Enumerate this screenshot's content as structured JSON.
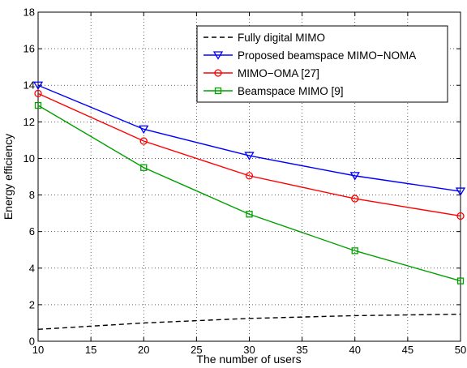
{
  "chart_data": {
    "type": "line",
    "title": "",
    "xlabel": "The number of users",
    "ylabel": "Energy efficiency",
    "xlim": [
      10,
      50
    ],
    "ylim": [
      0,
      18
    ],
    "xticks": [
      10,
      15,
      20,
      25,
      30,
      35,
      40,
      45,
      50
    ],
    "yticks": [
      0,
      2,
      4,
      6,
      8,
      10,
      12,
      14,
      16,
      18
    ],
    "grid": true,
    "legend_position": "top-right",
    "x": [
      10,
      20,
      30,
      40,
      50
    ],
    "series": [
      {
        "name": "Fully digital MIMO",
        "values": [
          0.65,
          1.0,
          1.25,
          1.4,
          1.48
        ],
        "color": "#000000",
        "dash": "dashed",
        "marker": "none"
      },
      {
        "name": "Proposed beamspace MIMO−NOMA",
        "values": [
          14.0,
          11.6,
          10.15,
          9.05,
          8.2
        ],
        "color": "#0000ff",
        "dash": "solid",
        "marker": "triangle-down"
      },
      {
        "name": "MIMO−OMA [27]",
        "values": [
          13.55,
          10.95,
          9.05,
          7.8,
          6.85
        ],
        "color": "#ff0000",
        "dash": "solid",
        "marker": "circle"
      },
      {
        "name": "Beamspace MIMO [9]",
        "values": [
          12.9,
          9.5,
          6.95,
          4.95,
          3.3
        ],
        "color": "#00a000",
        "dash": "solid",
        "marker": "square"
      }
    ]
  }
}
